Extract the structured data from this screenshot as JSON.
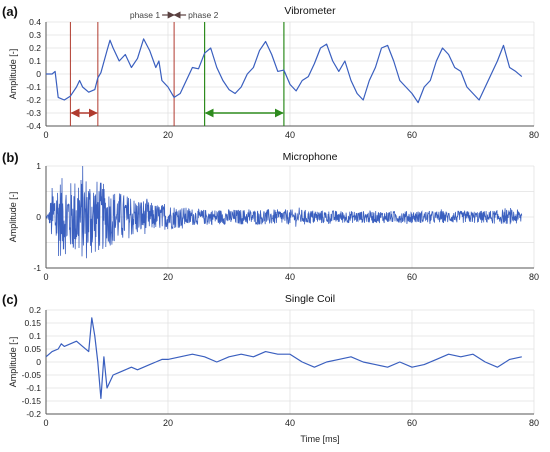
{
  "chart_data": [
    {
      "type": "line",
      "panel_label": "(a)",
      "title": "Vibrometer",
      "xlabel": "",
      "ylabel": "Amplitude [-]",
      "xlim": [
        0,
        80
      ],
      "ylim": [
        -0.4,
        0.4
      ],
      "xticks": [
        0,
        20,
        40,
        60,
        80
      ],
      "yticks": [
        -0.4,
        -0.3,
        -0.2,
        -0.1,
        0,
        0.1,
        0.2,
        0.3,
        0.4
      ],
      "yticklabels": [
        "-0.4",
        "-0.3",
        "-0.2",
        "-0.1",
        "0",
        "0.1",
        "0.2",
        "0.3",
        "0.4"
      ],
      "grid": true,
      "series_color": "#3a5fbf",
      "series": [
        {
          "x": [
            0,
            1,
            1.5,
            2,
            3,
            4,
            5,
            5.5,
            6,
            7,
            8,
            8.5,
            9,
            10,
            10.5,
            11,
            12,
            13,
            14,
            15,
            16,
            17,
            18,
            18.5,
            19,
            20,
            21,
            22,
            23,
            24,
            25,
            26,
            27,
            28,
            29,
            30,
            31,
            32,
            33,
            34,
            35,
            36,
            37,
            38,
            39,
            40,
            41,
            42,
            43,
            44,
            45,
            46,
            47,
            48,
            49,
            50,
            51,
            52,
            53,
            54,
            55,
            56,
            57,
            58,
            59,
            60,
            61,
            62,
            63,
            64,
            65,
            66,
            67,
            68,
            69,
            70,
            71,
            72,
            73,
            74,
            75,
            76,
            77,
            78
          ],
          "y": [
            0,
            0,
            0.02,
            -0.18,
            -0.2,
            -0.17,
            -0.1,
            -0.05,
            -0.1,
            -0.14,
            -0.12,
            -0.03,
            0.01,
            0.18,
            0.26,
            0.2,
            0.1,
            0.15,
            0.05,
            0.12,
            0.27,
            0.18,
            0.05,
            0.1,
            -0.05,
            -0.1,
            -0.18,
            -0.15,
            -0.05,
            0.05,
            0.04,
            0.16,
            0.2,
            0.05,
            -0.05,
            -0.12,
            -0.15,
            -0.1,
            0.0,
            0.05,
            0.18,
            0.25,
            0.15,
            0.02,
            0.03,
            -0.08,
            -0.13,
            -0.05,
            -0.02,
            0.08,
            0.2,
            0.23,
            0.1,
            0.02,
            0.1,
            -0.05,
            -0.15,
            -0.2,
            -0.05,
            0.05,
            0.2,
            0.22,
            0.1,
            -0.05,
            -0.1,
            -0.15,
            -0.22,
            -0.1,
            -0.05,
            0.1,
            0.2,
            0.15,
            0.05,
            0.02,
            -0.1,
            -0.15,
            -0.2,
            -0.1,
            0.0,
            0.1,
            0.22,
            0.05,
            0.02,
            -0.02
          ]
        }
      ],
      "annotations": {
        "phase1_label": "phase 1",
        "phase2_label": "phase 2",
        "red_lines_x": [
          4,
          8.5,
          21
        ],
        "green_lines_x": [
          26,
          39
        ],
        "red_color": "#b03a2e",
        "green_color": "#2e8b1e",
        "dark_arrow_color": "#5a4040"
      }
    },
    {
      "type": "line",
      "panel_label": "(b)",
      "title": "Microphone",
      "xlabel": "",
      "ylabel": "Amplitude [-]",
      "xlim": [
        0,
        80
      ],
      "ylim": [
        -1,
        1
      ],
      "xticks": [
        0,
        20,
        40,
        60,
        80
      ],
      "yticks": [
        -1,
        -0.5,
        0,
        0.5,
        1
      ],
      "yticklabels": [
        "-1",
        "",
        "0",
        "",
        "1"
      ],
      "grid": true,
      "series_color": "#3a5fbf",
      "envelope": {
        "x": [
          0,
          0.5,
          1,
          2,
          3,
          4,
          5,
          6,
          7,
          8,
          9,
          10,
          12,
          14,
          16,
          18,
          20,
          25,
          30,
          40,
          50,
          60,
          70,
          78
        ],
        "amplitude": [
          0.02,
          0.1,
          0.6,
          0.8,
          0.75,
          0.7,
          0.8,
          0.85,
          0.85,
          0.75,
          0.7,
          0.6,
          0.5,
          0.4,
          0.35,
          0.25,
          0.25,
          0.15,
          0.15,
          0.15,
          0.12,
          0.12,
          0.12,
          0.15
        ]
      }
    },
    {
      "type": "line",
      "panel_label": "(c)",
      "title": "Single Coil",
      "xlabel": "Time [ms]",
      "ylabel": "Amplitude [-]",
      "xlim": [
        0,
        80
      ],
      "ylim": [
        -0.2,
        0.2
      ],
      "xticks": [
        0,
        20,
        40,
        60,
        80
      ],
      "yticks": [
        -0.2,
        -0.15,
        -0.1,
        -0.05,
        0,
        0.05,
        0.1,
        0.15,
        0.2
      ],
      "yticklabels": [
        "-0.2",
        "-0.15",
        "-0.1",
        "-0.05",
        "0",
        "0.05",
        "0.1",
        "0.15",
        "0.2"
      ],
      "grid": true,
      "series_color": "#3a5fbf",
      "series": [
        {
          "x": [
            0,
            1,
            2,
            2.5,
            3,
            4,
            5,
            6,
            7,
            7.5,
            8,
            8.5,
            9,
            9.5,
            10,
            11,
            12,
            13,
            14,
            15,
            16,
            17,
            18,
            19,
            20,
            22,
            24,
            26,
            28,
            30,
            32,
            34,
            36,
            38,
            40,
            42,
            44,
            46,
            48,
            50,
            52,
            54,
            56,
            58,
            60,
            62,
            64,
            66,
            68,
            70,
            72,
            74,
            76,
            78
          ],
          "y": [
            0.02,
            0.04,
            0.05,
            0.07,
            0.06,
            0.07,
            0.08,
            0.06,
            0.04,
            0.17,
            0.1,
            0.0,
            -0.14,
            0.02,
            -0.1,
            -0.05,
            -0.04,
            -0.03,
            -0.02,
            -0.03,
            -0.02,
            -0.01,
            0.0,
            0.01,
            0.01,
            0.02,
            0.03,
            0.02,
            0.0,
            0.02,
            0.03,
            0.02,
            0.04,
            0.03,
            0.03,
            0.0,
            -0.02,
            0.0,
            0.01,
            0.02,
            0.0,
            -0.01,
            -0.02,
            0.0,
            -0.02,
            -0.01,
            0.01,
            0.03,
            0.02,
            0.03,
            0.0,
            -0.02,
            0.01,
            0.02
          ]
        }
      ]
    }
  ]
}
